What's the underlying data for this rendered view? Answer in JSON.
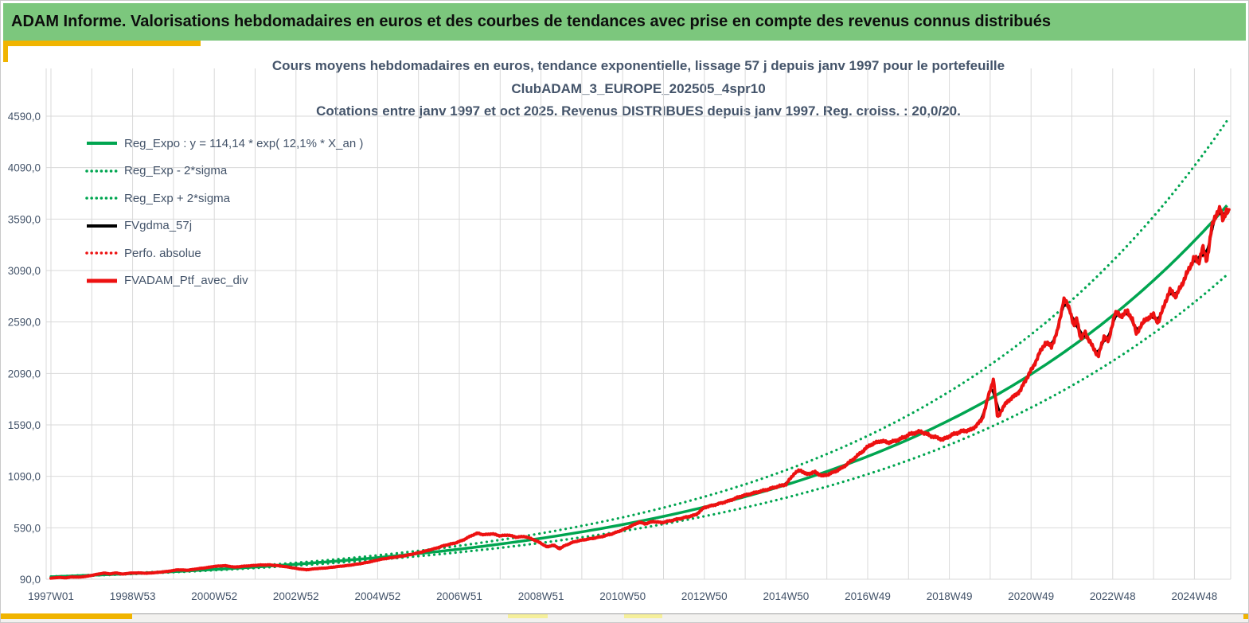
{
  "header": {
    "title": "ADAM Informe. Valorisations hebdomadaires en euros et des courbes de tendances avec prise en compte des revenus connus distribués"
  },
  "chart_data": {
    "type": "line",
    "title_lines": [
      "Cours moyens hebdomadaires  en euros,  tendance exponentielle,  lissage 57 j depuis janv 1997 pour le portefeuille",
      "ClubADAM_3_EUROPE_202505_4spr10",
      "Cotations  entre janv 1997 et oct 2025. Revenus DISTRIBUES  depuis janv 1997. Reg. croiss. : 20,0/20."
    ],
    "legend_position": "top-left",
    "grid": true,
    "colors": {
      "green": "#00A550",
      "red": "#ED1111",
      "black": "#000000",
      "grid": "#D9D9D9",
      "axis_text": "#44546A",
      "title_text": "#44546A",
      "header_bg": "#7CC77D",
      "gold": "#F0B400"
    },
    "x_range": [
      1997,
      2025.9
    ],
    "y_range": [
      90,
      4590
    ],
    "y_ticks": [
      {
        "v": 90,
        "label": "90,0"
      },
      {
        "v": 590,
        "label": "590,0"
      },
      {
        "v": 1090,
        "label": "1090,0"
      },
      {
        "v": 1590,
        "label": "1590,0"
      },
      {
        "v": 2090,
        "label": "2090,0"
      },
      {
        "v": 2590,
        "label": "2590,0"
      },
      {
        "v": 3090,
        "label": "3090,0"
      },
      {
        "v": 3590,
        "label": "3590,0"
      },
      {
        "v": 4090,
        "label": "4090,0"
      },
      {
        "v": 4590,
        "label": "4590,0"
      }
    ],
    "x_ticks": [
      {
        "year": 1997,
        "label": "1997W01"
      },
      {
        "year": 1999,
        "label": "1998W53"
      },
      {
        "year": 2001,
        "label": "2000W52"
      },
      {
        "year": 2003,
        "label": "2002W52"
      },
      {
        "year": 2005,
        "label": "2004W52"
      },
      {
        "year": 2007,
        "label": "2006W51"
      },
      {
        "year": 2009,
        "label": "2008W51"
      },
      {
        "year": 2011,
        "label": "2010W50"
      },
      {
        "year": 2013,
        "label": "2012W50"
      },
      {
        "year": 2015,
        "label": "2014W50"
      },
      {
        "year": 2017,
        "label": "2016W49"
      },
      {
        "year": 2019,
        "label": "2018W49"
      },
      {
        "year": 2021,
        "label": "2020W49"
      },
      {
        "year": 2023,
        "label": "2022W48"
      },
      {
        "year": 2025,
        "label": "2024W48"
      }
    ],
    "series": [
      {
        "name": "Reg_Expo",
        "legend": "Reg_Expo : y = 114,14 * exp( 12,1% *  X_an )",
        "type": "formula",
        "a": 114.14,
        "rate": 0.121,
        "color": "green",
        "style": "solid",
        "width": 3.5
      },
      {
        "name": "Reg_Exp-2sigma",
        "legend": "Reg_Exp - 2*sigma",
        "type": "band",
        "sign": -1,
        "color": "green",
        "style": "dots",
        "width": 3.2
      },
      {
        "name": "Reg_Exp+2sigma",
        "legend": "Reg_Exp + 2*sigma",
        "type": "band",
        "sign": 1,
        "color": "green",
        "style": "dots",
        "width": 3.2
      },
      {
        "name": "FVgdma_57j",
        "legend": "FVgdma_57j",
        "type": "smoothed",
        "color": "black",
        "style": "solid",
        "width": 3
      },
      {
        "name": "Perfo_absolue",
        "legend": "Perfo. absolue",
        "type": "smoothed",
        "scale": 0.996,
        "color": "red",
        "style": "dots",
        "width": 2.5
      },
      {
        "name": "FVADAM_Ptf_avec_div",
        "legend": "FVADAM_Ptf_avec_div",
        "type": "points",
        "color": "red",
        "style": "solid",
        "width": 4
      }
    ],
    "band_sigma": {
      "base": 0.02,
      "slope": 0.00624
    },
    "jitter": 0.008,
    "points": [
      [
        1997.0,
        100
      ],
      [
        1997.2,
        108
      ],
      [
        1997.35,
        103
      ],
      [
        1997.5,
        112
      ],
      [
        1997.7,
        110
      ],
      [
        1997.9,
        120
      ],
      [
        1998.1,
        136
      ],
      [
        1998.3,
        150
      ],
      [
        1998.45,
        142
      ],
      [
        1998.6,
        152
      ],
      [
        1998.75,
        140
      ],
      [
        1998.95,
        150
      ],
      [
        1999.15,
        152
      ],
      [
        1999.35,
        148
      ],
      [
        1999.6,
        156
      ],
      [
        1999.85,
        166
      ],
      [
        2000.1,
        182
      ],
      [
        2000.35,
        178
      ],
      [
        2000.6,
        192
      ],
      [
        2000.85,
        205
      ],
      [
        2001.0,
        215
      ],
      [
        2001.25,
        222
      ],
      [
        2001.5,
        208
      ],
      [
        2001.7,
        216
      ],
      [
        2001.9,
        222
      ],
      [
        2002.1,
        228
      ],
      [
        2002.35,
        230
      ],
      [
        2002.6,
        220
      ],
      [
        2002.85,
        206
      ],
      [
        2003.05,
        192
      ],
      [
        2003.25,
        182
      ],
      [
        2003.5,
        193
      ],
      [
        2003.75,
        200
      ],
      [
        2004.0,
        212
      ],
      [
        2004.3,
        225
      ],
      [
        2004.6,
        243
      ],
      [
        2004.85,
        262
      ],
      [
        2005.05,
        282
      ],
      [
        2005.35,
        300
      ],
      [
        2005.65,
        318
      ],
      [
        2005.9,
        338
      ],
      [
        2006.15,
        362
      ],
      [
        2006.4,
        388
      ],
      [
        2006.65,
        420
      ],
      [
        2006.9,
        442
      ],
      [
        2007.1,
        472
      ],
      [
        2007.3,
        515
      ],
      [
        2007.45,
        538
      ],
      [
        2007.6,
        522
      ],
      [
        2007.8,
        532
      ],
      [
        2008.0,
        512
      ],
      [
        2008.2,
        520
      ],
      [
        2008.4,
        498
      ],
      [
        2008.6,
        506
      ],
      [
        2008.8,
        478
      ],
      [
        2009.0,
        440
      ],
      [
        2009.15,
        402
      ],
      [
        2009.3,
        424
      ],
      [
        2009.45,
        386
      ],
      [
        2009.6,
        420
      ],
      [
        2009.8,
        452
      ],
      [
        2010.0,
        470
      ],
      [
        2010.25,
        486
      ],
      [
        2010.5,
        505
      ],
      [
        2010.75,
        532
      ],
      [
        2011.0,
        570
      ],
      [
        2011.2,
        605
      ],
      [
        2011.4,
        645
      ],
      [
        2011.55,
        628
      ],
      [
        2011.75,
        652
      ],
      [
        2011.95,
        640
      ],
      [
        2012.2,
        662
      ],
      [
        2012.5,
        688
      ],
      [
        2012.8,
        718
      ],
      [
        2013.0,
        788
      ],
      [
        2013.3,
        818
      ],
      [
        2013.6,
        852
      ],
      [
        2013.9,
        898
      ],
      [
        2014.2,
        928
      ],
      [
        2014.5,
        958
      ],
      [
        2014.8,
        992
      ],
      [
        2015.0,
        1012
      ],
      [
        2015.2,
        1118
      ],
      [
        2015.35,
        1152
      ],
      [
        2015.5,
        1108
      ],
      [
        2015.7,
        1132
      ],
      [
        2015.9,
        1092
      ],
      [
        2016.1,
        1118
      ],
      [
        2016.35,
        1165
      ],
      [
        2016.6,
        1240
      ],
      [
        2016.85,
        1325
      ],
      [
        2017.05,
        1392
      ],
      [
        2017.3,
        1432
      ],
      [
        2017.55,
        1418
      ],
      [
        2017.8,
        1452
      ],
      [
        2018.05,
        1502
      ],
      [
        2018.3,
        1525
      ],
      [
        2018.55,
        1482
      ],
      [
        2018.85,
        1448
      ],
      [
        2019.05,
        1492
      ],
      [
        2019.3,
        1528
      ],
      [
        2019.55,
        1545
      ],
      [
        2019.8,
        1640
      ],
      [
        2019.95,
        1860
      ],
      [
        2020.08,
        2040
      ],
      [
        2020.18,
        1655
      ],
      [
        2020.3,
        1752
      ],
      [
        2020.45,
        1832
      ],
      [
        2020.6,
        1872
      ],
      [
        2020.75,
        1932
      ],
      [
        2020.9,
        2052
      ],
      [
        2021.05,
        2152
      ],
      [
        2021.2,
        2282
      ],
      [
        2021.35,
        2392
      ],
      [
        2021.5,
        2352
      ],
      [
        2021.65,
        2502
      ],
      [
        2021.8,
        2812
      ],
      [
        2021.95,
        2722
      ],
      [
        2022.05,
        2532
      ],
      [
        2022.12,
        2635
      ],
      [
        2022.22,
        2415
      ],
      [
        2022.32,
        2492
      ],
      [
        2022.5,
        2352
      ],
      [
        2022.65,
        2258
      ],
      [
        2022.8,
        2465
      ],
      [
        2022.9,
        2392
      ],
      [
        2023.05,
        2682
      ],
      [
        2023.2,
        2645
      ],
      [
        2023.35,
        2692
      ],
      [
        2023.48,
        2622
      ],
      [
        2023.58,
        2468
      ],
      [
        2023.68,
        2552
      ],
      [
        2023.85,
        2625
      ],
      [
        2024.0,
        2655
      ],
      [
        2024.12,
        2582
      ],
      [
        2024.28,
        2782
      ],
      [
        2024.42,
        2902
      ],
      [
        2024.55,
        2835
      ],
      [
        2024.7,
        2962
      ],
      [
        2024.85,
        3085
      ],
      [
        2025.0,
        3225
      ],
      [
        2025.1,
        3152
      ],
      [
        2025.2,
        3325
      ],
      [
        2025.3,
        3172
      ],
      [
        2025.42,
        3502
      ],
      [
        2025.55,
        3652
      ],
      [
        2025.63,
        3702
      ],
      [
        2025.7,
        3565
      ],
      [
        2025.78,
        3688
      ],
      [
        2025.85,
        3655
      ]
    ]
  }
}
